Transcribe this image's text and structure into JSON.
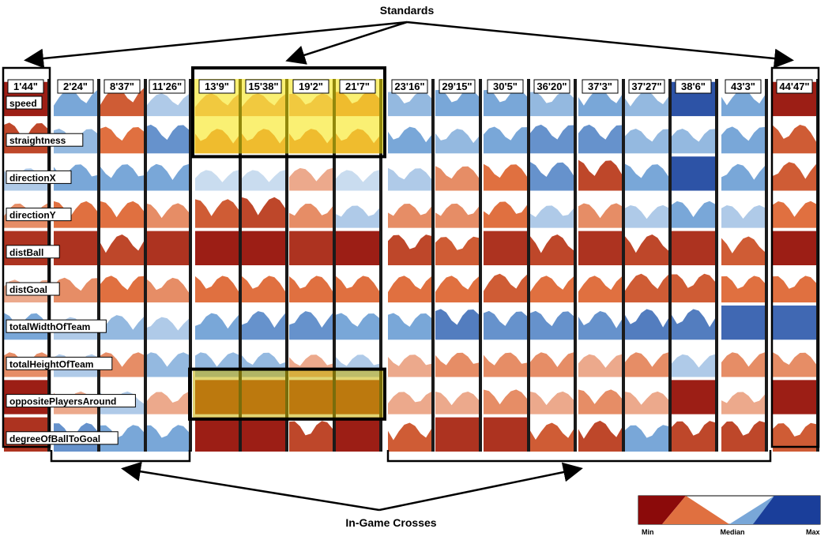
{
  "chart_data": {
    "type": "heatmap",
    "title": "",
    "annotations": {
      "top": "Standards",
      "bottom": "In-Game Crosses"
    },
    "times": [
      "1'44\"",
      "2'24\"",
      "8'37\"",
      "11'26\"",
      "13'9\"",
      "15'38\"",
      "19'2\"",
      "21'7\"",
      "23'16\"",
      "29'15\"",
      "30'5\"",
      "36'20\"",
      "37'3\"",
      "37'27\"",
      "38'6\"",
      "43'3\"",
      "44'47\""
    ],
    "attributes": [
      "speed",
      "straightness",
      "directionX",
      "directionY",
      "distBall",
      "distGoal",
      "totalWidthOfTeam",
      "totalHeightOfTeam",
      "oppositePlayersAround",
      "degreeOfBallToGoal"
    ],
    "standard_indices": [
      0,
      16
    ],
    "highlighted_indices": [
      4,
      5,
      6,
      7
    ],
    "highlighted_rows": [
      "speed",
      "straightness",
      "oppositePlayersAround"
    ],
    "legend": {
      "labels": [
        "Min",
        "Median",
        "Max"
      ],
      "colors": [
        "#8b0a0a",
        "#e07040",
        "#ffffff",
        "#79a7d8",
        "#1a3e9a"
      ]
    },
    "values": [
      [
        -0.9,
        0.5,
        -0.6,
        0.3,
        -0.3,
        -0.3,
        -0.3,
        -0.4,
        0.4,
        0.5,
        0.5,
        0.4,
        0.5,
        0.4,
        0.9,
        0.5,
        -0.9
      ],
      [
        -0.7,
        0.4,
        -0.5,
        0.6,
        -0.4,
        -0.4,
        -0.4,
        -0.4,
        0.5,
        0.4,
        0.5,
        0.6,
        0.6,
        0.4,
        0.4,
        0.5,
        -0.6
      ],
      [
        0.3,
        0.5,
        0.5,
        0.5,
        0.2,
        0.2,
        -0.3,
        0.2,
        0.3,
        -0.4,
        -0.5,
        0.6,
        -0.7,
        0.5,
        0.9,
        0.5,
        -0.6
      ],
      [
        -0.4,
        -0.5,
        -0.5,
        -0.4,
        -0.6,
        -0.7,
        -0.4,
        0.3,
        -0.4,
        -0.4,
        -0.5,
        0.3,
        -0.4,
        0.3,
        0.5,
        0.3,
        -0.5
      ],
      [
        -0.8,
        -0.8,
        -0.7,
        -0.8,
        -0.9,
        -0.9,
        -0.8,
        -0.9,
        -0.7,
        -0.6,
        -0.8,
        -0.7,
        -0.8,
        -0.7,
        -0.8,
        -0.6,
        -0.9
      ],
      [
        -0.3,
        -0.4,
        -0.5,
        -0.4,
        -0.5,
        -0.5,
        -0.5,
        -0.5,
        -0.5,
        -0.5,
        -0.6,
        -0.5,
        -0.5,
        -0.6,
        -0.6,
        -0.5,
        -0.5
      ],
      [
        0.5,
        0.3,
        0.4,
        0.3,
        0.5,
        0.6,
        0.6,
        0.5,
        0.5,
        0.7,
        0.6,
        0.6,
        0.6,
        0.7,
        0.7,
        0.8,
        0.8
      ],
      [
        -0.4,
        0.3,
        -0.4,
        0.4,
        0.4,
        0.4,
        -0.3,
        0.3,
        -0.3,
        -0.4,
        -0.4,
        -0.4,
        -0.3,
        -0.4,
        0.3,
        -0.4,
        -0.4
      ],
      [
        -0.9,
        -0.3,
        0.3,
        -0.3,
        -0.8,
        -0.8,
        -0.8,
        -0.8,
        -0.3,
        -0.3,
        -0.4,
        -0.3,
        -0.4,
        -0.3,
        -0.9,
        -0.3,
        -0.9
      ],
      [
        -0.8,
        0.6,
        0.5,
        0.5,
        -0.9,
        -0.9,
        -0.7,
        -0.9,
        -0.6,
        -0.8,
        -0.8,
        -0.6,
        -0.7,
        0.5,
        -0.7,
        -0.7,
        -0.6
      ]
    ]
  }
}
